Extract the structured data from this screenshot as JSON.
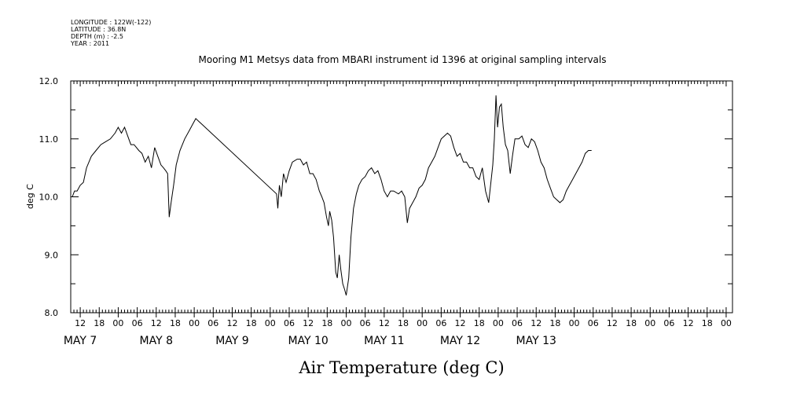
{
  "header": {
    "meta_lines": [
      "LONGITUDE : 122W(-122)",
      "LATITUDE : 36.8N",
      "DEPTH (m) : -2.5",
      "YEAR : 2011"
    ],
    "title": "Mooring M1 Metsys data from MBARI instrument id 1396 at original sampling intervals"
  },
  "chart_data": {
    "type": "line",
    "title": "Mooring M1 Metsys data from MBARI instrument id 1396 at original sampling intervals",
    "xlabel": "Air Temperature (deg C)",
    "ylabel": "deg C",
    "ylim": [
      8.0,
      12.0
    ],
    "y_ticks": [
      "8.0",
      "9.0",
      "10.0",
      "11.0",
      "12.0"
    ],
    "x_unit": "hours since MAY 6 00:00",
    "xlim": [
      153,
      168
    ],
    "x_hour_ticks": [
      {
        "t": 156,
        "label": "12"
      },
      {
        "t": 162,
        "label": "18"
      },
      {
        "t": 168,
        "label": "00"
      },
      {
        "t": 174,
        "label": "06"
      },
      {
        "t": 180,
        "label": "12"
      },
      {
        "t": 186,
        "label": "18"
      },
      {
        "t": 192,
        "label": "00"
      },
      {
        "t": 198,
        "label": "06"
      },
      {
        "t": 204,
        "label": "12"
      },
      {
        "t": 210,
        "label": "18"
      },
      {
        "t": 216,
        "label": "00"
      },
      {
        "t": 222,
        "label": "06"
      },
      {
        "t": 228,
        "label": "12"
      },
      {
        "t": 234,
        "label": "18"
      },
      {
        "t": 240,
        "label": "00"
      },
      {
        "t": 246,
        "label": "06"
      },
      {
        "t": 252,
        "label": "12"
      },
      {
        "t": 258,
        "label": "18"
      },
      {
        "t": 264,
        "label": "00"
      },
      {
        "t": 270,
        "label": "06"
      },
      {
        "t": 276,
        "label": "12"
      },
      {
        "t": 282,
        "label": "18"
      },
      {
        "t": 288,
        "label": "00"
      },
      {
        "t": 294,
        "label": "06"
      },
      {
        "t": 300,
        "label": "12"
      },
      {
        "t": 306,
        "label": "18"
      },
      {
        "t": 312,
        "label": "00"
      },
      {
        "t": 318,
        "label": "06"
      },
      {
        "t": 324,
        "label": "12"
      },
      {
        "t": 330,
        "label": "18"
      },
      {
        "t": 336,
        "label": "00"
      },
      {
        "t": 342,
        "label": "06"
      },
      {
        "t": 348,
        "label": "12"
      },
      {
        "t": 354,
        "label": "18"
      },
      {
        "t": 360,
        "label": "00"
      }
    ],
    "day_labels": [
      {
        "t": 156,
        "label": "MAY  7"
      },
      {
        "t": 180,
        "label": "MAY  8"
      },
      {
        "t": 204,
        "label": "MAY  9"
      },
      {
        "t": 228,
        "label": "MAY 10"
      },
      {
        "t": 252,
        "label": "MAY 11"
      },
      {
        "t": 276,
        "label": "MAY 12"
      },
      {
        "t": 300,
        "label": "MAY 13"
      }
    ],
    "series": [
      {
        "values": [
          [
            153.5,
            10.0
          ],
          [
            154.2,
            10.1
          ],
          [
            155.0,
            10.1
          ],
          [
            156.0,
            10.2
          ],
          [
            157.0,
            10.25
          ],
          [
            158.0,
            10.5
          ],
          [
            159.5,
            10.7
          ],
          [
            161.0,
            10.8
          ],
          [
            162.5,
            10.9
          ],
          [
            164.0,
            10.95
          ],
          [
            165.5,
            11.0
          ],
          [
            167.0,
            11.1
          ],
          [
            168.0,
            11.2
          ],
          [
            169.0,
            11.1
          ],
          [
            170.0,
            11.2
          ],
          [
            171.0,
            11.05
          ],
          [
            172.0,
            10.9
          ],
          [
            173.0,
            10.9
          ],
          [
            174.5,
            10.8
          ],
          [
            175.5,
            10.75
          ],
          [
            176.5,
            10.6
          ],
          [
            177.5,
            10.7
          ],
          [
            178.5,
            10.5
          ],
          [
            179.5,
            10.85
          ],
          [
            180.5,
            10.7
          ],
          [
            181.5,
            10.55
          ],
          [
            182.3,
            10.5
          ],
          [
            183.0,
            10.45
          ],
          [
            183.6,
            10.4
          ],
          [
            184.1,
            9.65
          ],
          [
            184.7,
            9.9
          ],
          [
            185.5,
            10.2
          ],
          [
            186.3,
            10.55
          ],
          [
            187.5,
            10.8
          ],
          [
            189.0,
            11.0
          ],
          [
            190.5,
            11.15
          ],
          [
            191.5,
            11.25
          ],
          [
            192.0,
            11.3
          ],
          [
            192.5,
            11.35
          ],
          [
            218.0,
            10.05
          ],
          [
            218.4,
            9.8
          ],
          [
            218.9,
            10.2
          ],
          [
            219.5,
            10.0
          ],
          [
            220.2,
            10.4
          ],
          [
            221.0,
            10.25
          ],
          [
            222.0,
            10.45
          ],
          [
            223.0,
            10.6
          ],
          [
            224.5,
            10.65
          ],
          [
            225.5,
            10.65
          ],
          [
            226.5,
            10.55
          ],
          [
            227.5,
            10.6
          ],
          [
            228.5,
            10.4
          ],
          [
            229.5,
            10.4
          ],
          [
            230.5,
            10.3
          ],
          [
            231.5,
            10.1
          ],
          [
            232.3,
            10.0
          ],
          [
            233.0,
            9.9
          ],
          [
            233.8,
            9.65
          ],
          [
            234.4,
            9.5
          ],
          [
            234.8,
            9.75
          ],
          [
            235.4,
            9.6
          ],
          [
            236.0,
            9.3
          ],
          [
            236.7,
            8.7
          ],
          [
            237.2,
            8.6
          ],
          [
            237.8,
            9.0
          ],
          [
            238.3,
            8.75
          ],
          [
            238.9,
            8.5
          ],
          [
            239.5,
            8.4
          ],
          [
            240.0,
            8.3
          ],
          [
            240.8,
            8.6
          ],
          [
            241.5,
            9.3
          ],
          [
            242.3,
            9.8
          ],
          [
            243.2,
            10.05
          ],
          [
            244.0,
            10.2
          ],
          [
            245.0,
            10.3
          ],
          [
            246.0,
            10.35
          ],
          [
            247.0,
            10.45
          ],
          [
            248.0,
            10.5
          ],
          [
            249.0,
            10.4
          ],
          [
            250.0,
            10.45
          ],
          [
            251.0,
            10.3
          ],
          [
            252.0,
            10.1
          ],
          [
            253.0,
            10.0
          ],
          [
            254.0,
            10.1
          ],
          [
            255.0,
            10.1
          ],
          [
            256.5,
            10.05
          ],
          [
            257.5,
            10.1
          ],
          [
            258.5,
            10.0
          ],
          [
            259.3,
            9.55
          ],
          [
            260.0,
            9.8
          ],
          [
            261.0,
            9.9
          ],
          [
            262.0,
            10.0
          ],
          [
            263.0,
            10.15
          ],
          [
            264.0,
            10.2
          ],
          [
            265.0,
            10.3
          ],
          [
            266.0,
            10.5
          ],
          [
            267.0,
            10.6
          ],
          [
            268.0,
            10.7
          ],
          [
            269.0,
            10.85
          ],
          [
            270.0,
            11.0
          ],
          [
            271.0,
            11.05
          ],
          [
            272.0,
            11.1
          ],
          [
            273.0,
            11.05
          ],
          [
            274.0,
            10.85
          ],
          [
            275.0,
            10.7
          ],
          [
            276.0,
            10.75
          ],
          [
            277.0,
            10.6
          ],
          [
            278.0,
            10.6
          ],
          [
            279.0,
            10.5
          ],
          [
            280.0,
            10.5
          ],
          [
            281.0,
            10.35
          ],
          [
            282.0,
            10.3
          ],
          [
            283.0,
            10.5
          ],
          [
            284.0,
            10.1
          ],
          [
            285.0,
            9.9
          ],
          [
            285.8,
            10.3
          ],
          [
            286.3,
            10.55
          ],
          [
            286.8,
            11.0
          ],
          [
            287.3,
            11.75
          ],
          [
            287.8,
            11.2
          ],
          [
            288.4,
            11.55
          ],
          [
            289.0,
            11.6
          ],
          [
            289.6,
            11.2
          ],
          [
            290.3,
            10.9
          ],
          [
            291.0,
            10.8
          ],
          [
            291.8,
            10.4
          ],
          [
            292.5,
            10.7
          ],
          [
            293.3,
            11.0
          ],
          [
            294.5,
            11.0
          ],
          [
            295.5,
            11.05
          ],
          [
            296.5,
            10.9
          ],
          [
            297.5,
            10.85
          ],
          [
            298.5,
            11.0
          ],
          [
            299.5,
            10.95
          ],
          [
            300.5,
            10.8
          ],
          [
            301.5,
            10.6
          ],
          [
            302.5,
            10.5
          ],
          [
            303.5,
            10.3
          ],
          [
            304.5,
            10.15
          ],
          [
            305.5,
            10.0
          ],
          [
            306.5,
            9.95
          ],
          [
            307.5,
            9.9
          ],
          [
            308.5,
            9.95
          ],
          [
            309.5,
            10.1
          ],
          [
            310.5,
            10.2
          ],
          [
            311.5,
            10.3
          ],
          [
            312.5,
            10.4
          ],
          [
            313.5,
            10.5
          ],
          [
            314.5,
            10.6
          ],
          [
            315.5,
            10.75
          ],
          [
            316.5,
            10.8
          ],
          [
            317.5,
            10.8
          ]
        ]
      }
    ],
    "grid": false,
    "line_color": "#000000"
  }
}
